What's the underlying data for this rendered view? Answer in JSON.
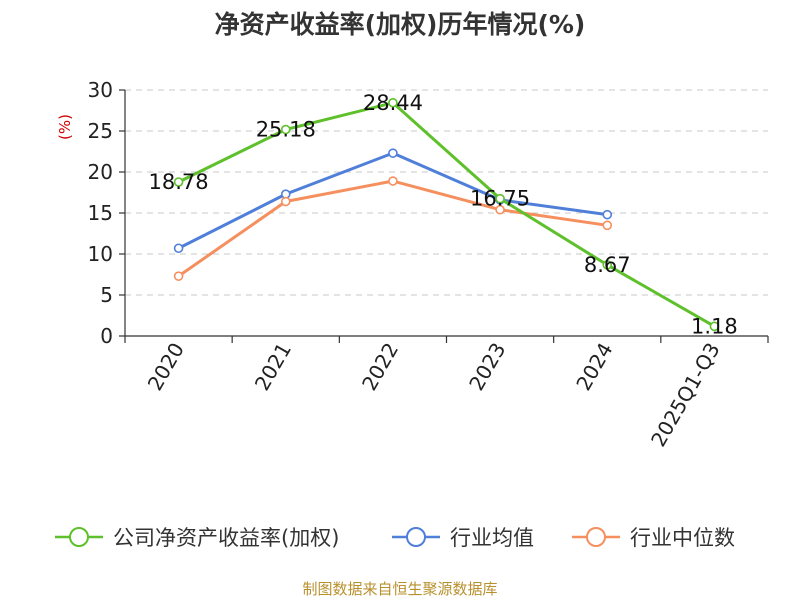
{
  "chart_data": {
    "type": "line",
    "title": "净资产收益率(加权)历年情况(%)",
    "ylabel": "(%)",
    "xlabel": "",
    "ylim": [
      0,
      30
    ],
    "yticks": [
      0,
      5,
      10,
      15,
      20,
      25,
      30
    ],
    "categories": [
      "2020",
      "2021",
      "2022",
      "2023",
      "2024",
      "2025Q1-Q3"
    ],
    "grid": true,
    "legend_position": "bottom",
    "series": [
      {
        "name": "公司净资产收益率(加权)",
        "color": "#5ec02a",
        "values": [
          18.78,
          25.18,
          28.44,
          16.75,
          8.67,
          1.18
        ],
        "labels": [
          "18.78",
          "25.18",
          "28.44",
          "16.75",
          "8.67",
          "1.18"
        ]
      },
      {
        "name": "行业均值",
        "color": "#4f7fd8",
        "values": [
          10.7,
          17.3,
          22.3,
          16.6,
          14.8,
          null
        ]
      },
      {
        "name": "行业中位数",
        "color": "#f58f5e",
        "values": [
          7.3,
          16.4,
          18.9,
          15.4,
          13.5,
          null
        ]
      }
    ],
    "source": "制图数据来自恒生聚源数据库"
  }
}
